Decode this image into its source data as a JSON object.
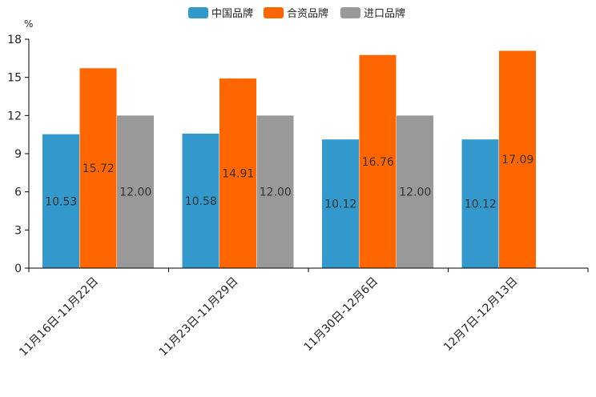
{
  "chart_data": {
    "type": "bar",
    "title": "",
    "unit": "%",
    "xlabel": "",
    "ylabel": "%",
    "ylim": [
      0,
      18
    ],
    "yticks": [
      0,
      3,
      6,
      9,
      12,
      15,
      18
    ],
    "grid": false,
    "legend_position": "top-center",
    "categories": [
      "11月16日-11月22日",
      "11月23日-11月29日",
      "11月30日-12月6日",
      "12月7日-12月13日"
    ],
    "series": [
      {
        "name": "中国品牌",
        "color": "#3399cc",
        "values": [
          10.53,
          10.58,
          10.12,
          10.12
        ],
        "labels": [
          "10.53",
          "10.58",
          "10.12",
          "10.12"
        ]
      },
      {
        "name": "合资品牌",
        "color": "#ff6600",
        "values": [
          15.72,
          14.91,
          16.76,
          17.09
        ],
        "labels": [
          "15.72",
          "14.91",
          "16.76",
          "17.09"
        ]
      },
      {
        "name": "进口品牌",
        "color": "#999999",
        "values": [
          12.0,
          12.0,
          12.0,
          null
        ],
        "labels": [
          "12.00",
          "12.00",
          "12.00",
          null
        ]
      }
    ]
  }
}
